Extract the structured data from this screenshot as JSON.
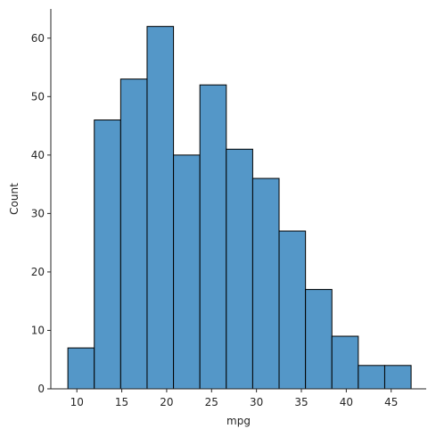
{
  "chart_data": {
    "type": "bar",
    "subtype": "histogram",
    "title": "",
    "xlabel": "mpg",
    "ylabel": "Count",
    "bar_color": "#5497c8",
    "edge_color": "#000000",
    "bin_edges": [
      9.0,
      11.94,
      14.88,
      17.82,
      20.76,
      23.7,
      26.64,
      29.58,
      32.52,
      35.46,
      38.4,
      41.34,
      44.28,
      47.22
    ],
    "values": [
      7,
      46,
      53,
      62,
      40,
      52,
      41,
      36,
      27,
      17,
      9,
      4,
      4
    ],
    "xlim": [
      7.1,
      48.9
    ],
    "ylim": [
      0,
      65
    ],
    "xticks": [
      10,
      15,
      20,
      25,
      30,
      35,
      40,
      45
    ],
    "yticks": [
      0,
      10,
      20,
      30,
      40,
      50,
      60
    ],
    "grid": false,
    "spines": "left-bottom"
  }
}
